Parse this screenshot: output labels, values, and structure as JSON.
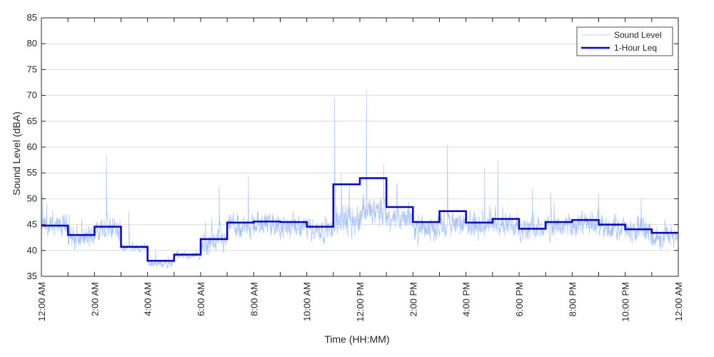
{
  "chart_data": {
    "type": "line",
    "title": "",
    "xlabel": "Time (HH:MM)",
    "ylabel": "Sound Level (dBA)",
    "xlim": [
      0,
      24
    ],
    "ylim": [
      35,
      85
    ],
    "y_ticks": [
      35,
      40,
      45,
      50,
      55,
      60,
      65,
      70,
      75,
      80,
      85
    ],
    "x_ticks": [
      0,
      2,
      4,
      6,
      8,
      10,
      12,
      14,
      16,
      18,
      20,
      22,
      24
    ],
    "x_tick_labels": [
      "12:00 AM",
      "2:00 AM",
      "4:00 AM",
      "6:00 AM",
      "8:00 AM",
      "10:00 AM",
      "12:00 PM",
      "2:00 PM",
      "4:00 PM",
      "6:00 PM",
      "8:00 PM",
      "10:00 PM",
      "12:00 AM"
    ],
    "grid": true,
    "legend_placement": "top-right",
    "series": [
      {
        "name": "Sound Level",
        "color": "#a9c4f5",
        "x_hours": [
          0,
          1,
          2,
          3,
          4,
          5,
          6,
          7,
          8,
          9,
          10,
          11,
          12,
          13,
          14,
          15,
          16,
          17,
          18,
          19,
          20,
          21,
          22,
          23
        ],
        "base_levels": [
          44.5,
          42.5,
          44,
          40.5,
          37.5,
          39,
          41.5,
          44.5,
          45,
          44.5,
          44,
          46,
          47,
          46,
          44,
          45,
          44.5,
          45,
          44,
          44.5,
          45,
          44.5,
          43.5,
          42.5
        ],
        "spikes": [
          [
            0.05,
            51
          ],
          [
            0.2,
            49
          ],
          [
            1.05,
            47
          ],
          [
            2.45,
            58.5
          ],
          [
            3.3,
            47.5
          ],
          [
            3.85,
            40.5
          ],
          [
            4.3,
            40
          ],
          [
            6.7,
            52.5
          ],
          [
            7.8,
            54.5
          ],
          [
            11.05,
            69.5
          ],
          [
            11.3,
            55
          ],
          [
            11.6,
            53
          ],
          [
            12.25,
            71
          ],
          [
            12.9,
            56.5
          ],
          [
            13.4,
            53
          ],
          [
            15.3,
            60.5
          ],
          [
            16.7,
            56
          ],
          [
            17.2,
            57.5
          ],
          [
            18.5,
            52
          ],
          [
            19.2,
            51
          ],
          [
            21,
            51
          ],
          [
            22.6,
            50
          ],
          [
            23.5,
            46
          ]
        ]
      },
      {
        "name": "1-Hour Leq",
        "color": "#0000e0",
        "x_hours": [
          0,
          1,
          2,
          3,
          4,
          5,
          6,
          7,
          8,
          9,
          10,
          11,
          12,
          13,
          14,
          15,
          16,
          17,
          18,
          19,
          20,
          21,
          22,
          23
        ],
        "values": [
          44.8,
          43.0,
          44.6,
          40.7,
          38.0,
          39.2,
          42.2,
          45.4,
          45.6,
          45.5,
          44.6,
          52.8,
          54.0,
          48.4,
          45.5,
          47.6,
          45.4,
          46.1,
          44.2,
          45.5,
          45.9,
          45.0,
          44.1,
          43.4
        ]
      }
    ]
  }
}
